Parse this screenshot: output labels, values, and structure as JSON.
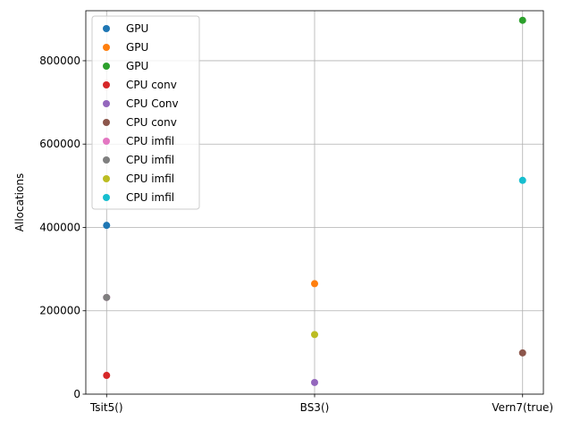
{
  "chart_data": {
    "type": "scatter",
    "title": "",
    "xlabel": "",
    "ylabel": "Allocations",
    "categories": [
      "Tsit5()",
      "BS3()",
      "Vern7(true)"
    ],
    "ylim": [
      0,
      920000
    ],
    "yticks": [
      0,
      200000,
      400000,
      600000,
      800000
    ],
    "ytick_labels": [
      "0",
      "200000",
      "400000",
      "600000",
      "800000"
    ],
    "grid": true,
    "legend_position": "upper left",
    "series": [
      {
        "name": "GPU",
        "color": "#1f77b4",
        "points": [
          {
            "x": "Tsit5()",
            "y": 405000
          }
        ]
      },
      {
        "name": "GPU",
        "color": "#ff7f0e",
        "points": [
          {
            "x": "BS3()",
            "y": 265000
          }
        ]
      },
      {
        "name": "GPU",
        "color": "#2ca02c",
        "points": [
          {
            "x": "Vern7(true)",
            "y": 897000
          }
        ]
      },
      {
        "name": "CPU conv",
        "color": "#d62728",
        "points": [
          {
            "x": "Tsit5()",
            "y": 45000
          }
        ]
      },
      {
        "name": "CPU Conv",
        "color": "#9467bd",
        "points": [
          {
            "x": "BS3()",
            "y": 28000
          }
        ]
      },
      {
        "name": "CPU conv",
        "color": "#8c564b",
        "points": [
          {
            "x": "Vern7(true)",
            "y": 99000
          }
        ]
      },
      {
        "name": "CPU imfil",
        "color": "#e377c2",
        "points": [
          {
            "x": "Tsit5()",
            "y": 232000
          }
        ]
      },
      {
        "name": "CPU imfil",
        "color": "#7f7f7f",
        "points": [
          {
            "x": "Tsit5()",
            "y": 232000
          }
        ]
      },
      {
        "name": "CPU imfil",
        "color": "#bcbd22",
        "points": [
          {
            "x": "BS3()",
            "y": 143000
          }
        ]
      },
      {
        "name": "CPU imfil",
        "color": "#17becf",
        "points": [
          {
            "x": "Vern7(true)",
            "y": 513000
          }
        ]
      }
    ]
  }
}
